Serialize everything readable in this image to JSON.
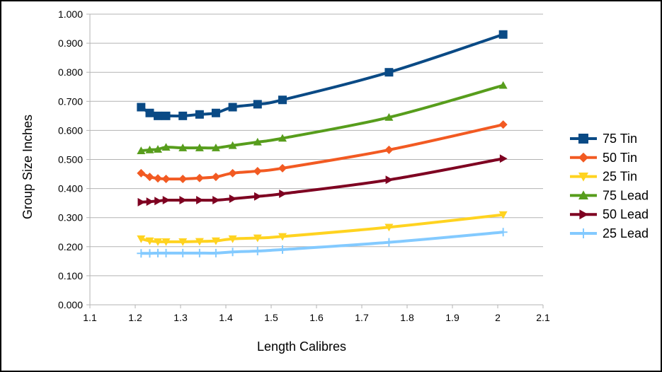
{
  "chart_data": {
    "type": "line",
    "title": "",
    "xlabel": "Length Calibres",
    "ylabel": "Group Size Inches",
    "xlim": [
      1.1,
      2.1
    ],
    "ylim": [
      0,
      1
    ],
    "x_ticks": [
      "1.1",
      "1.2",
      "1.3",
      "1.4",
      "1.5",
      "1.6",
      "1.7",
      "1.8",
      "1.9",
      "2",
      "2.1"
    ],
    "y_ticks": [
      "0.000",
      "0.100",
      "0.200",
      "0.300",
      "0.400",
      "0.500",
      "0.600",
      "0.700",
      "0.800",
      "0.900",
      "1.000"
    ],
    "grid": "horizontal",
    "legend_position": "right",
    "series": [
      {
        "name": "75 Tin",
        "color": "#0a4a85",
        "marker": "square",
        "points": [
          [
            1.213,
            0.68
          ],
          [
            1.232,
            0.66
          ],
          [
            1.25,
            0.65
          ],
          [
            1.268,
            0.65
          ],
          [
            1.305,
            0.65
          ],
          [
            1.342,
            0.655
          ],
          [
            1.378,
            0.66
          ],
          [
            1.415,
            0.68
          ],
          [
            1.47,
            0.69
          ],
          [
            1.525,
            0.705
          ],
          [
            1.76,
            0.8
          ],
          [
            2.012,
            0.93
          ]
        ]
      },
      {
        "name": "50 Tin",
        "color": "#f25a22",
        "marker": "diamond",
        "points": [
          [
            1.213,
            0.453
          ],
          [
            1.232,
            0.44
          ],
          [
            1.25,
            0.435
          ],
          [
            1.268,
            0.433
          ],
          [
            1.305,
            0.433
          ],
          [
            1.342,
            0.436
          ],
          [
            1.378,
            0.44
          ],
          [
            1.415,
            0.453
          ],
          [
            1.47,
            0.46
          ],
          [
            1.525,
            0.47
          ],
          [
            1.76,
            0.533
          ],
          [
            2.012,
            0.62
          ]
        ]
      },
      {
        "name": "25 Tin",
        "color": "#ffd320",
        "marker": "triangle-down",
        "points": [
          [
            1.213,
            0.227
          ],
          [
            1.232,
            0.22
          ],
          [
            1.25,
            0.217
          ],
          [
            1.268,
            0.217
          ],
          [
            1.305,
            0.217
          ],
          [
            1.342,
            0.218
          ],
          [
            1.378,
            0.22
          ],
          [
            1.415,
            0.227
          ],
          [
            1.47,
            0.23
          ],
          [
            1.525,
            0.235
          ],
          [
            1.76,
            0.267
          ],
          [
            2.012,
            0.31
          ]
        ]
      },
      {
        "name": "75 Lead",
        "color": "#579d1c",
        "marker": "triangle-up",
        "points": [
          [
            1.213,
            0.53
          ],
          [
            1.232,
            0.533
          ],
          [
            1.25,
            0.535
          ],
          [
            1.268,
            0.542
          ],
          [
            1.305,
            0.54
          ],
          [
            1.342,
            0.54
          ],
          [
            1.378,
            0.54
          ],
          [
            1.415,
            0.548
          ],
          [
            1.47,
            0.56
          ],
          [
            1.525,
            0.573
          ],
          [
            1.76,
            0.645
          ],
          [
            2.012,
            0.755
          ]
        ]
      },
      {
        "name": "50 Lead",
        "color": "#7e0021",
        "marker": "triangle-right",
        "points": [
          [
            1.213,
            0.353
          ],
          [
            1.232,
            0.355
          ],
          [
            1.25,
            0.357
          ],
          [
            1.268,
            0.36
          ],
          [
            1.305,
            0.36
          ],
          [
            1.342,
            0.36
          ],
          [
            1.378,
            0.36
          ],
          [
            1.415,
            0.365
          ],
          [
            1.47,
            0.373
          ],
          [
            1.525,
            0.382
          ],
          [
            1.76,
            0.43
          ],
          [
            2.012,
            0.503
          ]
        ]
      },
      {
        "name": "25 Lead",
        "color": "#83caff",
        "marker": "plus",
        "points": [
          [
            1.213,
            0.177
          ],
          [
            1.232,
            0.177
          ],
          [
            1.25,
            0.178
          ],
          [
            1.268,
            0.178
          ],
          [
            1.305,
            0.178
          ],
          [
            1.342,
            0.178
          ],
          [
            1.378,
            0.178
          ],
          [
            1.415,
            0.182
          ],
          [
            1.47,
            0.185
          ],
          [
            1.525,
            0.19
          ],
          [
            1.76,
            0.215
          ],
          [
            2.012,
            0.25
          ]
        ]
      }
    ]
  }
}
